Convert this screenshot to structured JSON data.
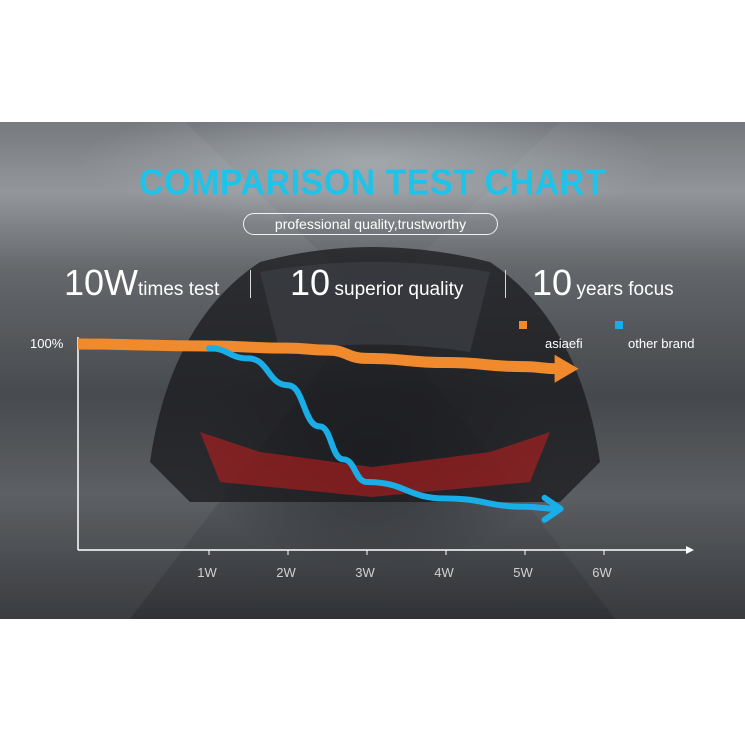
{
  "title": "COMPARISON TEST CHART",
  "subtitle": "professional quality,trustworthy",
  "stats": [
    {
      "big": "10W",
      "small": "times test"
    },
    {
      "big": "10",
      "small": "superior quality"
    },
    {
      "big": "10",
      "small": "years focus"
    }
  ],
  "colors": {
    "title": "#1ec3ea",
    "asiaefi": "#f08a2c",
    "other_brand": "#1aaee8"
  },
  "chart_data": {
    "type": "line",
    "title": "COMPARISON TEST CHART",
    "x_ticks": [
      "1W",
      "2W",
      "3W",
      "4W",
      "5W",
      "6W"
    ],
    "y_tick_label": "100%",
    "series": [
      {
        "name": "asiaefi",
        "x": [
          0,
          1,
          2,
          2.5,
          3,
          4,
          5,
          5.4
        ],
        "y": [
          100,
          99,
          98,
          97,
          93,
          91,
          89,
          88
        ]
      },
      {
        "name": "other brand",
        "x": [
          1,
          1.5,
          2,
          2.4,
          2.7,
          3,
          4,
          5,
          5.4
        ],
        "y": [
          98,
          93,
          80,
          60,
          44,
          33,
          25,
          21,
          20
        ]
      }
    ]
  }
}
